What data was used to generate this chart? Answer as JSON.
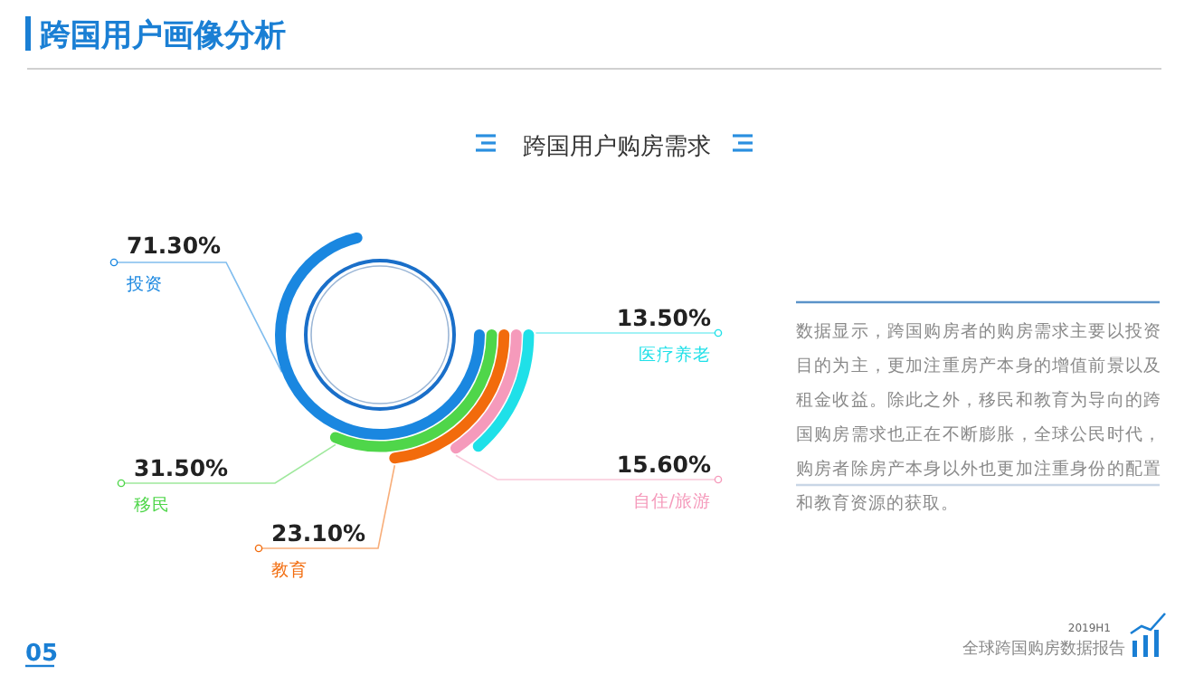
{
  "chart_data": {
    "type": "other",
    "title": "跨国用户画像分析",
    "subtitle": "跨国用户购房需求",
    "categories": [
      "投资",
      "移民",
      "教育",
      "自住/旅游",
      "医疗养老"
    ],
    "values": [
      71.3,
      31.5,
      23.1,
      15.6,
      13.5
    ],
    "colors": [
      "#1a87e0",
      "#4fd64a",
      "#f26b0c",
      "#f59abb",
      "#1fe0e8"
    ],
    "value_labels": [
      "71.30%",
      "31.50%",
      "23.10%",
      "15.60%",
      "13.50%"
    ],
    "annotations": [
      "数据显示，跨国购房者的购房需求主要以投资目的为主，更加注重房产本身的增值前景以及租金收益。除此之外，移民和教育为导向的跨国购房需求也正在不断膨胀，全球公民时代，购房者除房产本身以外也更加注重身份的配置和教育资源的获取。",
      "05",
      "2019H1",
      "全球跨国购房数据报告"
    ]
  }
}
